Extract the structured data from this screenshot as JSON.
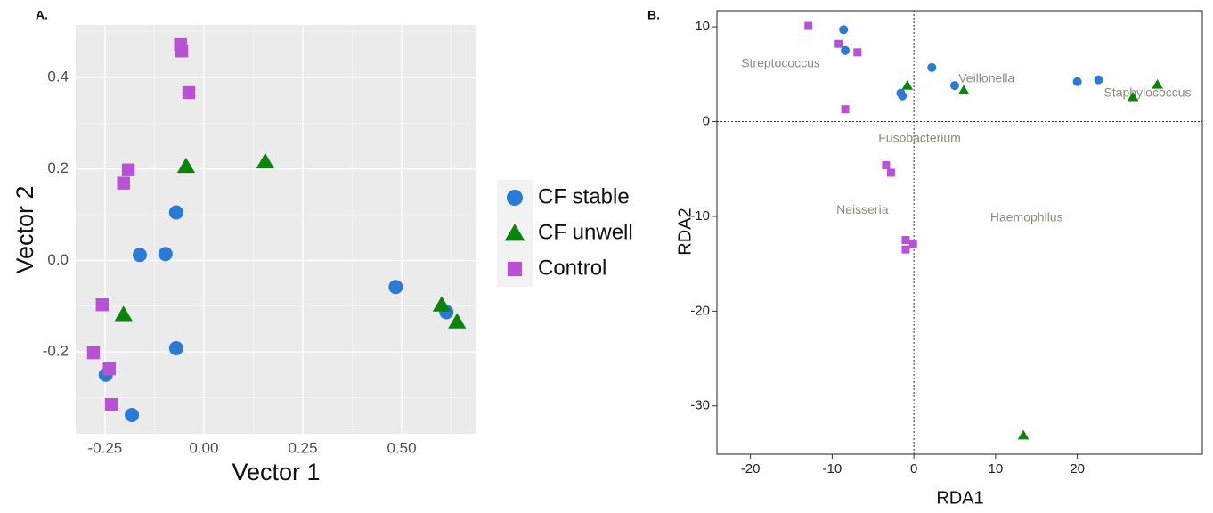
{
  "chart_data": [
    {
      "type": "scatter",
      "panel_label": "A.",
      "x_label": "Vector 1",
      "y_label": "Vector 2",
      "xlim": [
        -0.324,
        0.689
      ],
      "ylim": [
        -0.379,
        0.515
      ],
      "xticks": [
        {
          "value": -0.25,
          "label": "-0.25"
        },
        {
          "value": 0,
          "label": "0.00"
        },
        {
          "value": 0.25,
          "label": "0.25"
        },
        {
          "value": 0.5,
          "label": "0.50"
        }
      ],
      "yticks": [
        {
          "value": -0.2,
          "label": "-0.2"
        },
        {
          "value": 0,
          "label": "0.0"
        },
        {
          "value": 0.2,
          "label": "0.2"
        },
        {
          "value": 0.4,
          "label": "0.4"
        }
      ],
      "grid": true,
      "legend": "right",
      "series": [
        {
          "name": "CF stable",
          "color": "#2a7bd5",
          "marker": "circle",
          "x": [
            -0.07,
            -0.162,
            -0.097,
            -0.07,
            -0.248,
            -0.182,
            0.485,
            0.613
          ],
          "y": [
            0.105,
            0.012,
            0.014,
            -0.192,
            -0.25,
            -0.338,
            -0.058,
            -0.113
          ]
        },
        {
          "name": "CF unwell",
          "color": "#0a850a",
          "marker": "triangle",
          "x": [
            -0.045,
            0.155,
            -0.203,
            0.601,
            0.64
          ],
          "y": [
            0.206,
            0.216,
            -0.118,
            -0.097,
            -0.134
          ]
        },
        {
          "name": "Control",
          "color": "#b951d6",
          "marker": "square",
          "x": [
            -0.059,
            -0.056,
            -0.038,
            -0.191,
            -0.203,
            -0.257,
            -0.279,
            -0.239,
            -0.234
          ],
          "y": [
            0.472,
            0.458,
            0.367,
            0.198,
            0.169,
            -0.097,
            -0.202,
            -0.237,
            -0.315
          ]
        }
      ]
    },
    {
      "type": "scatter",
      "panel_label": "B.",
      "x_label": "RDA1",
      "y_label": "RDA2",
      "xlim": [
        -24.1,
        35.3
      ],
      "ylim": [
        -35.1,
        11.7
      ],
      "xticks": [
        -20,
        -10,
        0,
        10,
        20
      ],
      "yticks": [
        -30,
        -20,
        -10,
        0,
        10
      ],
      "grid": false,
      "zero_lines": true,
      "series": [
        {
          "color": "#2a7bd5",
          "marker": "circle",
          "x": [
            -8.6,
            -8.4,
            2.2,
            -1.6,
            -1.4,
            5.0,
            20.0,
            22.6
          ],
          "y": [
            9.7,
            7.5,
            5.7,
            3.0,
            2.7,
            3.8,
            4.2,
            4.4
          ]
        },
        {
          "color": "#0a850a",
          "marker": "triangle",
          "x": [
            -0.8,
            6.1,
            26.8,
            29.8,
            13.4
          ],
          "y": [
            3.8,
            3.3,
            2.6,
            3.9,
            -33.1
          ]
        },
        {
          "color": "#b951d6",
          "marker": "square",
          "x": [
            -12.9,
            -9.2,
            -6.9,
            -8.4,
            -3.4,
            -2.8,
            -1.0,
            -0.1,
            -1.0
          ],
          "y": [
            10.1,
            8.2,
            7.3,
            1.3,
            -4.6,
            -5.4,
            -12.5,
            -12.9,
            -13.5
          ]
        }
      ],
      "annotations": [
        {
          "text": "Streptococcus",
          "x": -16.3,
          "y": 6.1
        },
        {
          "text": "Veillonella",
          "x": 8.9,
          "y": 4.5
        },
        {
          "text": "Staphylococcus",
          "x": 28.6,
          "y": 3.0
        },
        {
          "text": "Fusobacterium",
          "x": 0.7,
          "y": -1.8
        },
        {
          "text": "Neisseria",
          "x": -6.3,
          "y": -9.4
        },
        {
          "text": "Haemophilus",
          "x": 13.8,
          "y": -10.2
        }
      ]
    }
  ]
}
